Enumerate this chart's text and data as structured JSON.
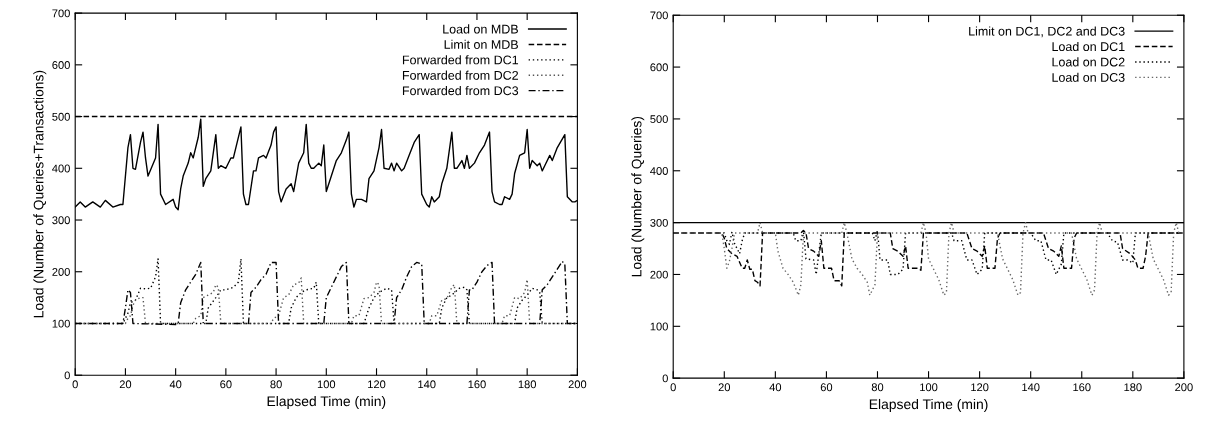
{
  "chart_data": [
    {
      "type": "line",
      "xlabel": "Elapsed Time (min)",
      "ylabel": "Load (Number of Queries+Transactions)",
      "xlim": [
        0,
        200
      ],
      "ylim": [
        0,
        700
      ],
      "xticks": [
        0,
        20,
        40,
        60,
        80,
        100,
        120,
        140,
        160,
        180,
        200
      ],
      "yticks": [
        0,
        100,
        200,
        300,
        400,
        500,
        600,
        700
      ],
      "grid": false,
      "legend": "top right",
      "series": [
        {
          "name": "Load on MDB",
          "color": "#000000",
          "line_style": "solid",
          "x": [
            0,
            2,
            4,
            7,
            10,
            12,
            15,
            18,
            19,
            21,
            22,
            23,
            24,
            26,
            27,
            28,
            29,
            32,
            33,
            34,
            36,
            39,
            40,
            41,
            42,
            43,
            45,
            46,
            47,
            49,
            50,
            51,
            52,
            54,
            56,
            57,
            58,
            60,
            62,
            63,
            66,
            67,
            68,
            69,
            71,
            72,
            73,
            75,
            76,
            78,
            79,
            80,
            81,
            82,
            84,
            86,
            87,
            89,
            91,
            92,
            93,
            94,
            95,
            97,
            98,
            99,
            100,
            102,
            104,
            106,
            108,
            109,
            110,
            111,
            112,
            114,
            116,
            117,
            119,
            121,
            122,
            123,
            125,
            126,
            127,
            128,
            130,
            131,
            133,
            135,
            137,
            138,
            140,
            141,
            142,
            143,
            145,
            146,
            148,
            150,
            151,
            152,
            154,
            155,
            156,
            157,
            159,
            161,
            163,
            165,
            166,
            167,
            169,
            170,
            171,
            173,
            174,
            175,
            177,
            179,
            180,
            181,
            182,
            184,
            185,
            186,
            187,
            189,
            190,
            192,
            195,
            196,
            198,
            199,
            200
          ],
          "values": [
            325,
            335,
            325,
            335,
            325,
            338,
            325,
            330,
            330,
            440,
            465,
            400,
            398,
            450,
            470,
            420,
            385,
            420,
            485,
            350,
            330,
            340,
            325,
            320,
            360,
            385,
            410,
            430,
            420,
            460,
            495,
            365,
            380,
            395,
            465,
            400,
            405,
            400,
            420,
            420,
            480,
            350,
            330,
            330,
            395,
            395,
            420,
            425,
            420,
            445,
            470,
            480,
            355,
            335,
            360,
            370,
            355,
            410,
            430,
            485,
            410,
            400,
            400,
            410,
            405,
            445,
            355,
            385,
            415,
            430,
            455,
            470,
            350,
            325,
            340,
            340,
            335,
            380,
            395,
            440,
            475,
            400,
            398,
            410,
            395,
            410,
            395,
            400,
            425,
            450,
            465,
            350,
            330,
            325,
            345,
            335,
            345,
            370,
            400,
            470,
            400,
            400,
            415,
            400,
            425,
            400,
            410,
            430,
            445,
            470,
            355,
            335,
            330,
            330,
            345,
            340,
            350,
            390,
            425,
            430,
            475,
            400,
            415,
            405,
            410,
            395,
            405,
            425,
            415,
            440,
            465,
            345,
            335,
            335,
            338
          ]
        },
        {
          "name": "Limit on MDB",
          "color": "#000000",
          "line_style": "dashed",
          "x": [
            0,
            200
          ],
          "values": [
            500,
            500
          ]
        },
        {
          "name": "Forwarded from DC1",
          "color": "#000000",
          "line_style": "dotted",
          "x": [
            0,
            19,
            21,
            22,
            24,
            26,
            28,
            30,
            32,
            33,
            34,
            52,
            53,
            56,
            58,
            60,
            63,
            65,
            66,
            67,
            85,
            86,
            88,
            90,
            92,
            95,
            96,
            97,
            115,
            117,
            119,
            121,
            124,
            126,
            127,
            145,
            146,
            148,
            150,
            153,
            155,
            156,
            157,
            175,
            176,
            178,
            180,
            182,
            184,
            185,
            186,
            200
          ],
          "values": [
            100,
            100,
            120,
            140,
            145,
            168,
            167,
            168,
            190,
            225,
            100,
            100,
            130,
            150,
            165,
            165,
            170,
            180,
            225,
            100,
            100,
            130,
            150,
            160,
            165,
            168,
            180,
            100,
            100,
            130,
            150,
            160,
            168,
            165,
            100,
            100,
            130,
            150,
            155,
            168,
            170,
            165,
            100,
            100,
            130,
            145,
            155,
            168,
            165,
            160,
            100,
            100
          ]
        },
        {
          "name": "Forwarded from DC2",
          "color": "#555555",
          "line_style": "dotted",
          "x": [
            0,
            20,
            21,
            22,
            23,
            24,
            26,
            27,
            28,
            47,
            48,
            50,
            51,
            53,
            55,
            56,
            57,
            58,
            78,
            79,
            81,
            83,
            85,
            87,
            89,
            90,
            91,
            110,
            111,
            113,
            115,
            117,
            119,
            120,
            121,
            122,
            141,
            142,
            144,
            146,
            148,
            150,
            151,
            152,
            170,
            171,
            173,
            175,
            177,
            179,
            180,
            181,
            200
          ],
          "values": [
            100,
            100,
            110,
            115,
            135,
            145,
            150,
            150,
            100,
            100,
            110,
            115,
            150,
            155,
            160,
            175,
            170,
            100,
            100,
            110,
            115,
            150,
            155,
            175,
            178,
            188,
            100,
            100,
            115,
            115,
            148,
            150,
            160,
            180,
            175,
            100,
            100,
            115,
            115,
            145,
            148,
            170,
            175,
            100,
            100,
            115,
            115,
            150,
            148,
            160,
            185,
            100,
            100
          ]
        },
        {
          "name": "Forwarded from DC3",
          "color": "#000000",
          "line_style": "dashdot",
          "x": [
            0,
            19,
            20,
            21,
            22,
            23,
            40,
            41,
            42,
            44,
            46,
            48,
            50,
            51,
            68,
            69,
            70,
            72,
            74,
            76,
            78,
            80,
            81,
            98,
            99,
            100,
            102,
            104,
            106,
            108,
            109,
            127,
            128,
            130,
            132,
            134,
            136,
            138,
            139,
            156,
            157,
            158,
            160,
            162,
            164,
            166,
            167,
            185,
            186,
            188,
            190,
            192,
            194,
            195,
            196,
            200
          ],
          "values": [
            100,
            100,
            130,
            165,
            160,
            100,
            98,
            100,
            140,
            165,
            180,
            195,
            218,
            100,
            100,
            100,
            160,
            170,
            185,
            195,
            218,
            218,
            100,
            100,
            100,
            150,
            170,
            190,
            210,
            218,
            100,
            100,
            150,
            165,
            190,
            210,
            218,
            215,
            100,
            100,
            165,
            165,
            180,
            200,
            212,
            218,
            100,
            100,
            165,
            175,
            190,
            205,
            220,
            215,
            100,
            100
          ]
        }
      ]
    },
    {
      "type": "line",
      "xlabel": "Elapsed Time (min)",
      "ylabel": "Load (Number of Queries)",
      "xlim": [
        0,
        200
      ],
      "ylim": [
        0,
        700
      ],
      "xticks": [
        0,
        20,
        40,
        60,
        80,
        100,
        120,
        140,
        160,
        180,
        200
      ],
      "yticks": [
        0,
        100,
        200,
        300,
        400,
        500,
        600,
        700
      ],
      "grid": false,
      "legend": "top right",
      "series": [
        {
          "name": "Limit on DC1, DC2 and DC3",
          "color": "#000000",
          "line_style": "solid",
          "x": [
            0,
            200
          ],
          "values": [
            300,
            300
          ]
        },
        {
          "name": "Load on DC1",
          "color": "#000000",
          "line_style": "dashed",
          "x": [
            0,
            19,
            20,
            21,
            23,
            25,
            27,
            28,
            29,
            30,
            31,
            32,
            33,
            34,
            35,
            50,
            51,
            52,
            53,
            55,
            57,
            58,
            59,
            62,
            63,
            65,
            66,
            67,
            85,
            86,
            88,
            90,
            91,
            92,
            96,
            97,
            98,
            115,
            117,
            119,
            121,
            122,
            123,
            126,
            127,
            128,
            145,
            147,
            149,
            151,
            152,
            153,
            156,
            157,
            158,
            175,
            176,
            179,
            181,
            182,
            184,
            185,
            186,
            200
          ],
          "values": [
            280,
            280,
            270,
            250,
            240,
            235,
            212,
            212,
            228,
            210,
            210,
            188,
            185,
            178,
            280,
            280,
            285,
            280,
            250,
            245,
            235,
            265,
            212,
            212,
            188,
            188,
            178,
            280,
            280,
            250,
            245,
            235,
            255,
            212,
            212,
            208,
            280,
            280,
            250,
            245,
            235,
            255,
            212,
            212,
            270,
            280,
            280,
            250,
            245,
            235,
            255,
            212,
            212,
            270,
            280,
            280,
            250,
            240,
            228,
            212,
            212,
            235,
            280,
            280
          ]
        },
        {
          "name": "Load on DC2",
          "color": "#000000",
          "line_style": "dotted",
          "x": [
            0,
            20,
            21,
            22,
            23,
            24,
            26,
            27,
            28,
            47,
            48,
            50,
            51,
            52,
            55,
            56,
            57,
            58,
            78,
            79,
            80,
            81,
            84,
            85,
            88,
            90,
            91,
            109,
            110,
            113,
            115,
            117,
            119,
            121,
            122,
            140,
            142,
            144,
            146,
            148,
            150,
            152,
            153,
            170,
            172,
            174,
            176,
            178,
            180,
            181,
            200
          ],
          "values": [
            280,
            280,
            265,
            258,
            282,
            260,
            240,
            265,
            280,
            280,
            265,
            265,
            285,
            230,
            228,
            200,
            240,
            280,
            280,
            265,
            285,
            228,
            228,
            200,
            200,
            210,
            280,
            280,
            265,
            265,
            228,
            228,
            200,
            210,
            280,
            280,
            265,
            265,
            228,
            228,
            200,
            220,
            280,
            280,
            265,
            262,
            228,
            228,
            222,
            280,
            280
          ]
        },
        {
          "name": "Load on DC3",
          "color": "#666666",
          "line_style": "dotted",
          "x": [
            0,
            19,
            20,
            21,
            22,
            23,
            24,
            33,
            34,
            35,
            40,
            41,
            43,
            45,
            47,
            49,
            50,
            51,
            66,
            67,
            68,
            70,
            72,
            74,
            76,
            77,
            79,
            80,
            97,
            98,
            99,
            100,
            102,
            104,
            106,
            107,
            108,
            109,
            110,
            127,
            129,
            131,
            133,
            135,
            136,
            137,
            138,
            139,
            156,
            158,
            160,
            162,
            164,
            165,
            166,
            167,
            168,
            186,
            188,
            190,
            192,
            194,
            195,
            196,
            197,
            198,
            200
          ],
          "values": [
            280,
            280,
            250,
            212,
            225,
            250,
            280,
            280,
            300,
            280,
            280,
            245,
            212,
            200,
            185,
            160,
            180,
            280,
            280,
            300,
            280,
            230,
            212,
            200,
            185,
            160,
            180,
            280,
            280,
            300,
            280,
            230,
            210,
            190,
            160,
            165,
            280,
            300,
            280,
            280,
            230,
            210,
            190,
            160,
            165,
            280,
            300,
            280,
            280,
            230,
            210,
            190,
            160,
            170,
            280,
            300,
            280,
            280,
            230,
            210,
            190,
            160,
            165,
            280,
            300,
            280,
            280
          ]
        }
      ]
    }
  ]
}
